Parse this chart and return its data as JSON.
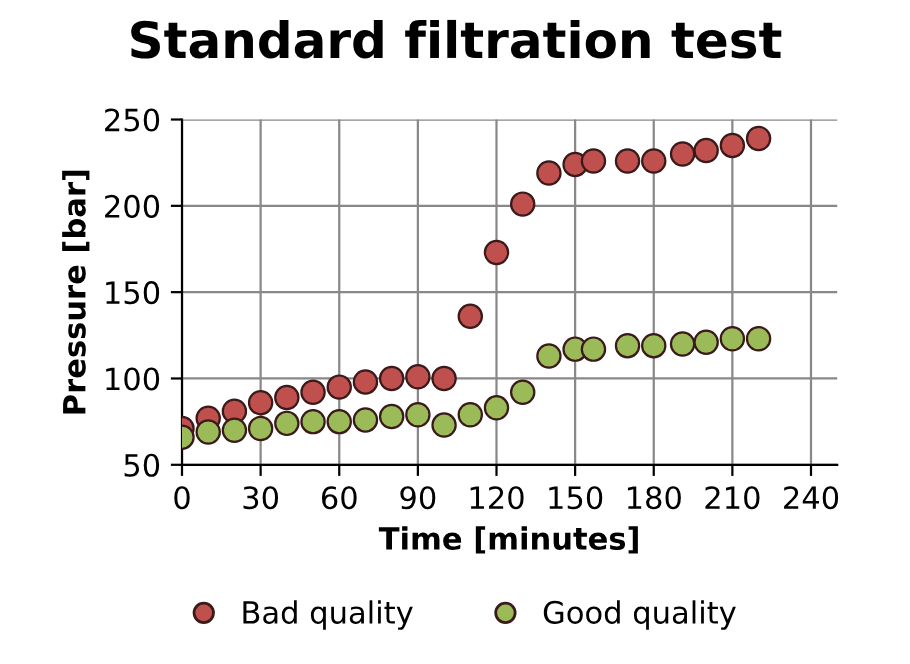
{
  "chart_data": {
    "type": "scatter",
    "title": "Standard filtration test",
    "xlabel": "Time [minutes]",
    "ylabel": "Pressure [bar]",
    "x": [
      0,
      10,
      20,
      30,
      40,
      50,
      60,
      70,
      80,
      90,
      100,
      110,
      120,
      130,
      140,
      150,
      157,
      170,
      180,
      191,
      200,
      210,
      220
    ],
    "series": [
      {
        "name": "Bad quality",
        "color": "#c0504d",
        "values": [
          71,
          77,
          81,
          86,
          89,
          92,
          95,
          98,
          100,
          101,
          100,
          136,
          173,
          201,
          219,
          224,
          226,
          226,
          226,
          230,
          232,
          235,
          239
        ]
      },
      {
        "name": "Good quality",
        "color": "#9bbb59",
        "values": [
          66,
          69,
          70,
          71,
          74,
          75,
          75,
          76,
          78,
          79,
          73,
          79,
          83,
          92,
          113,
          117,
          117,
          119,
          119,
          120,
          121,
          123,
          123
        ]
      }
    ],
    "xlim": [
      0,
      250
    ],
    "xticks": [
      0,
      30,
      60,
      90,
      120,
      150,
      180,
      210,
      240
    ],
    "ylim": [
      50,
      250
    ],
    "yticks": [
      50,
      100,
      150,
      200,
      250
    ],
    "grid": true,
    "legend": "bottom",
    "marker": "circle"
  }
}
